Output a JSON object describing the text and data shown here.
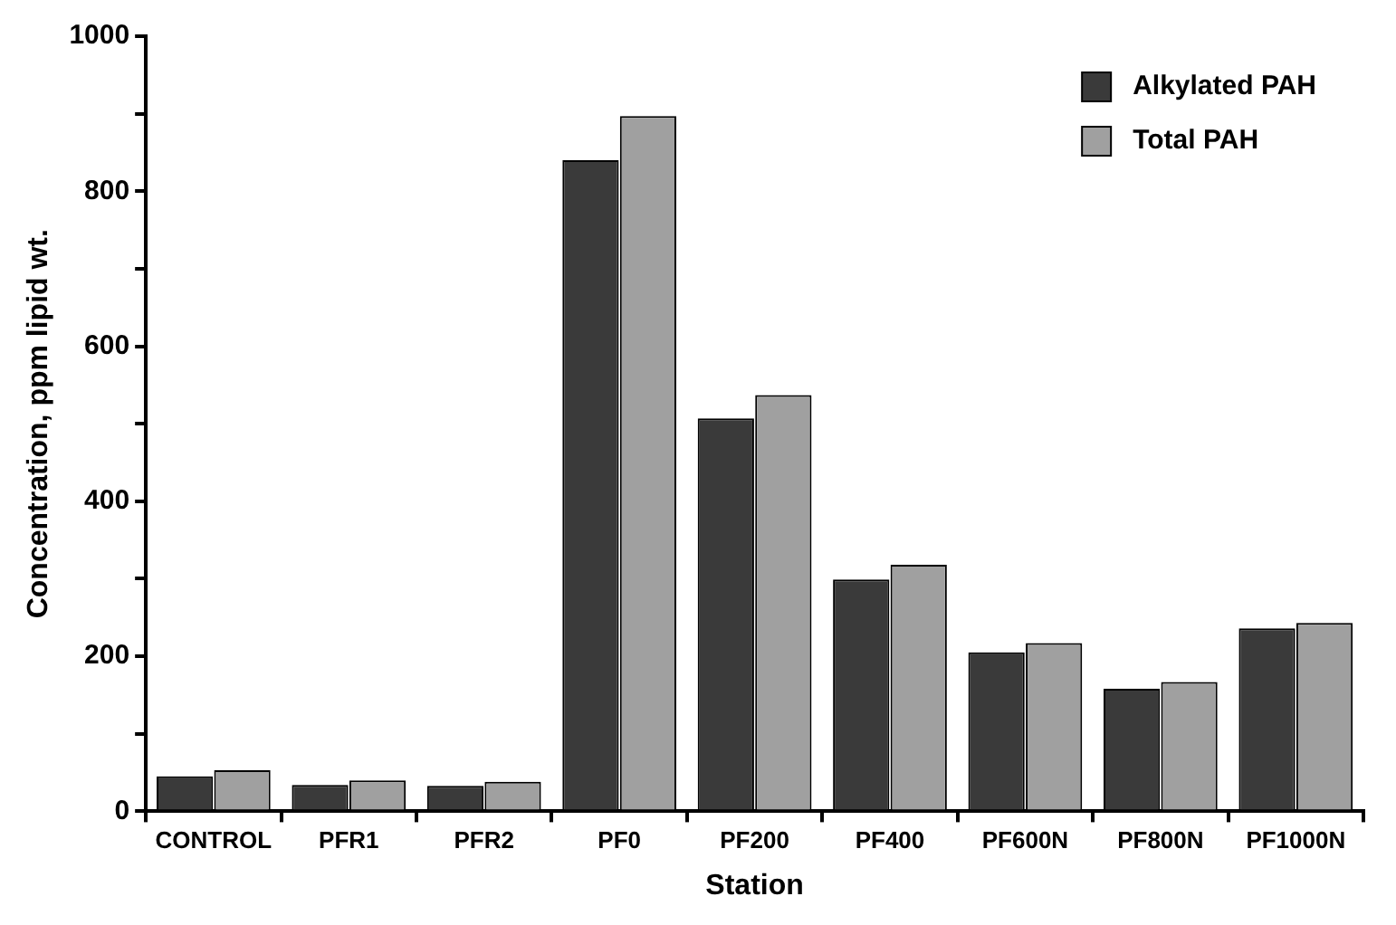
{
  "chart_data": {
    "type": "bar",
    "xlabel": "Station",
    "ylabel": "Concentration, ppm lipid wt.",
    "categories": [
      "CONTROL",
      "PFR1",
      "PFR2",
      "PF0",
      "PF200",
      "PF400",
      "PF600N",
      "PF800N",
      "PF1000N"
    ],
    "series": [
      {
        "name": "Alkylated PAH",
        "color": "#3a3a3a",
        "values": [
          45,
          34,
          33,
          840,
          507,
          299,
          205,
          158,
          236
        ]
      },
      {
        "name": "Total PAH",
        "color": "#a0a0a0",
        "values": [
          53,
          40,
          38,
          897,
          537,
          318,
          217,
          167,
          243
        ]
      }
    ],
    "ylim": [
      0,
      1000
    ],
    "yticks": [
      0,
      {
        "value": 100,
        "label": null
      },
      200,
      {
        "value": 300,
        "label": null
      },
      400,
      {
        "value": 500,
        "label": null
      },
      600,
      {
        "value": 700,
        "label": null
      },
      800,
      {
        "value": 900,
        "label": null
      },
      1000
    ],
    "grid": false,
    "legend": "top right"
  }
}
